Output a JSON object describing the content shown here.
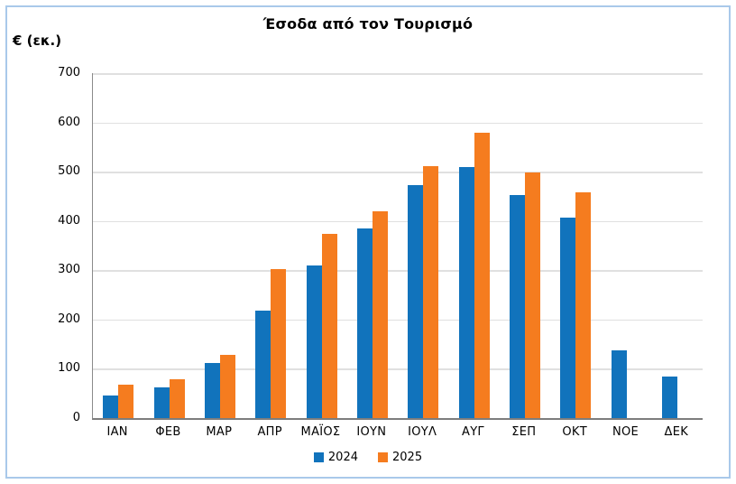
{
  "frame": {
    "border_color": "#A9C9EA"
  },
  "chart_data": {
    "type": "bar",
    "title": "Έσοδα από τον Τουρισμό",
    "ylabel": "€ (εκ.)",
    "xlabel": "",
    "categories": [
      "ΙΑΝ",
      "ΦΕΒ",
      "ΜΑΡ",
      "ΑΠΡ",
      "ΜΑΪΟΣ",
      "ΙΟΥΝ",
      "ΙΟΥΛ",
      "ΑΥΓ",
      "ΣΕΠ",
      "ΟΚΤ",
      "ΝΟΕ",
      "ΔΕΚ"
    ],
    "series": [
      {
        "name": "2024",
        "color": "#1173BC",
        "values": [
          45,
          63,
          111,
          218,
          310,
          385,
          473,
          510,
          452,
          406,
          138,
          85
        ]
      },
      {
        "name": "2025",
        "color": "#F57C1F",
        "values": [
          68,
          78,
          128,
          303,
          373,
          420,
          512,
          580,
          498,
          458,
          null,
          null
        ]
      }
    ],
    "ylim": [
      0,
      700
    ],
    "ytick_step": 100,
    "grid": true,
    "gridline_color": "#E0E0E0",
    "legend_position": "bottom"
  }
}
